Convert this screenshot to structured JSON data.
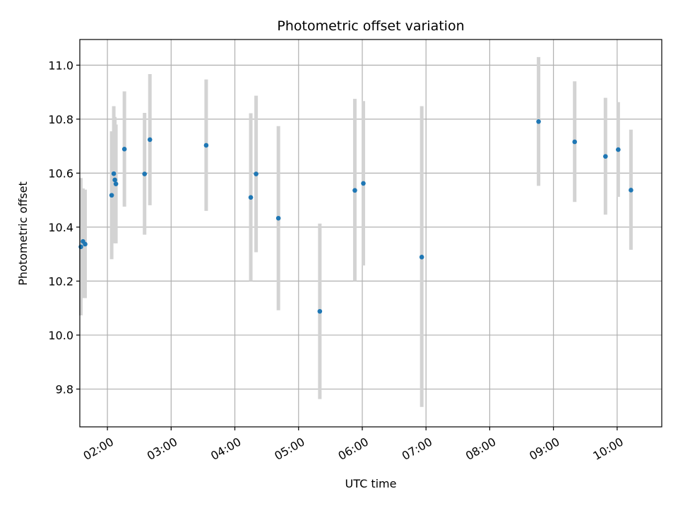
{
  "chart_data": {
    "type": "scatter",
    "title": "Photometric offset variation",
    "xlabel": "UTC time",
    "ylabel": "Photometric offset",
    "x_unit": "hours UTC",
    "xlim": [
      "01:34",
      "10:42"
    ],
    "ylim": [
      9.66,
      11.095
    ],
    "x_ticks": [
      "02:00",
      "03:00",
      "04:00",
      "05:00",
      "06:00",
      "07:00",
      "08:00",
      "09:00",
      "10:00"
    ],
    "y_ticks": [
      "9.8",
      "10.0",
      "10.2",
      "10.4",
      "10.6",
      "10.8",
      "11.0"
    ],
    "grid": true,
    "colors": {
      "point": "#1f77b4",
      "errorbar": "#d3d3d3",
      "grid": "#b0b0b0"
    },
    "points": [
      {
        "x": "01:35",
        "y": 10.327,
        "lo": 10.073,
        "hi": 10.582
      },
      {
        "x": "01:37",
        "y": 10.347,
        "lo": 10.137,
        "hi": 10.543
      },
      {
        "x": "01:39",
        "y": 10.337,
        "lo": 10.137,
        "hi": 10.539
      },
      {
        "x": "02:04",
        "y": 10.518,
        "lo": 10.281,
        "hi": 10.755
      },
      {
        "x": "02:06",
        "y": 10.598,
        "lo": 10.345,
        "hi": 10.848
      },
      {
        "x": "02:07",
        "y": 10.575,
        "lo": 10.34,
        "hi": 10.808
      },
      {
        "x": "02:08",
        "y": 10.56,
        "lo": 10.34,
        "hi": 10.78
      },
      {
        "x": "02:16",
        "y": 10.689,
        "lo": 10.476,
        "hi": 10.903
      },
      {
        "x": "02:35",
        "y": 10.597,
        "lo": 10.372,
        "hi": 10.823
      },
      {
        "x": "02:40",
        "y": 10.724,
        "lo": 10.481,
        "hi": 10.967
      },
      {
        "x": "03:33",
        "y": 10.703,
        "lo": 10.46,
        "hi": 10.947
      },
      {
        "x": "04:15",
        "y": 10.51,
        "lo": 10.2,
        "hi": 10.822
      },
      {
        "x": "04:20",
        "y": 10.597,
        "lo": 10.307,
        "hi": 10.887
      },
      {
        "x": "04:41",
        "y": 10.433,
        "lo": 10.092,
        "hi": 10.774
      },
      {
        "x": "05:20",
        "y": 10.088,
        "lo": 9.763,
        "hi": 10.413
      },
      {
        "x": "05:53",
        "y": 10.536,
        "lo": 10.2,
        "hi": 10.875
      },
      {
        "x": "06:01",
        "y": 10.562,
        "lo": 10.258,
        "hi": 10.867
      },
      {
        "x": "06:56",
        "y": 10.289,
        "lo": 9.734,
        "hi": 10.848
      },
      {
        "x": "08:46",
        "y": 10.791,
        "lo": 10.553,
        "hi": 11.03
      },
      {
        "x": "09:20",
        "y": 10.716,
        "lo": 10.493,
        "hi": 10.94
      },
      {
        "x": "09:49",
        "y": 10.662,
        "lo": 10.446,
        "hi": 10.879
      },
      {
        "x": "10:01",
        "y": 10.687,
        "lo": 10.512,
        "hi": 10.863
      },
      {
        "x": "10:13",
        "y": 10.537,
        "lo": 10.316,
        "hi": 10.761
      }
    ]
  }
}
